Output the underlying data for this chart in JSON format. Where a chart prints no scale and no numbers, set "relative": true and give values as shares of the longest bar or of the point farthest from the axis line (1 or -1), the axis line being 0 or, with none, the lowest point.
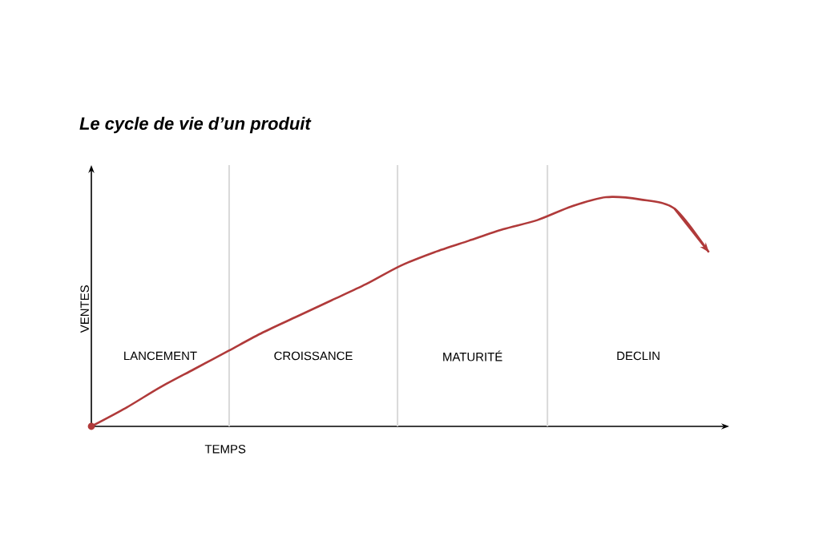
{
  "chart_data": {
    "type": "line",
    "title": "Le cycle de vie d’un produit",
    "xlabel": "TEMPS",
    "ylabel": "VENTES",
    "relative": true,
    "categories": [
      null,
      null,
      null,
      null,
      null,
      null,
      null,
      null,
      null,
      null,
      null,
      null,
      null,
      null,
      null,
      null,
      null,
      null,
      null
    ],
    "series": [
      {
        "color": "#b03a3a",
        "values": [
          0,
          0.08,
          0.17,
          0.25,
          0.33,
          0.41,
          0.48,
          0.55,
          0.62,
          0.7,
          0.76,
          0.81,
          0.86,
          0.9,
          0.96,
          1.0,
          0.99,
          0.95,
          0.76
        ]
      }
    ],
    "annotations": [
      "LANCEMENT",
      "CROISSANCE",
      "MATURITÉ",
      "DECLIN"
    ]
  }
}
